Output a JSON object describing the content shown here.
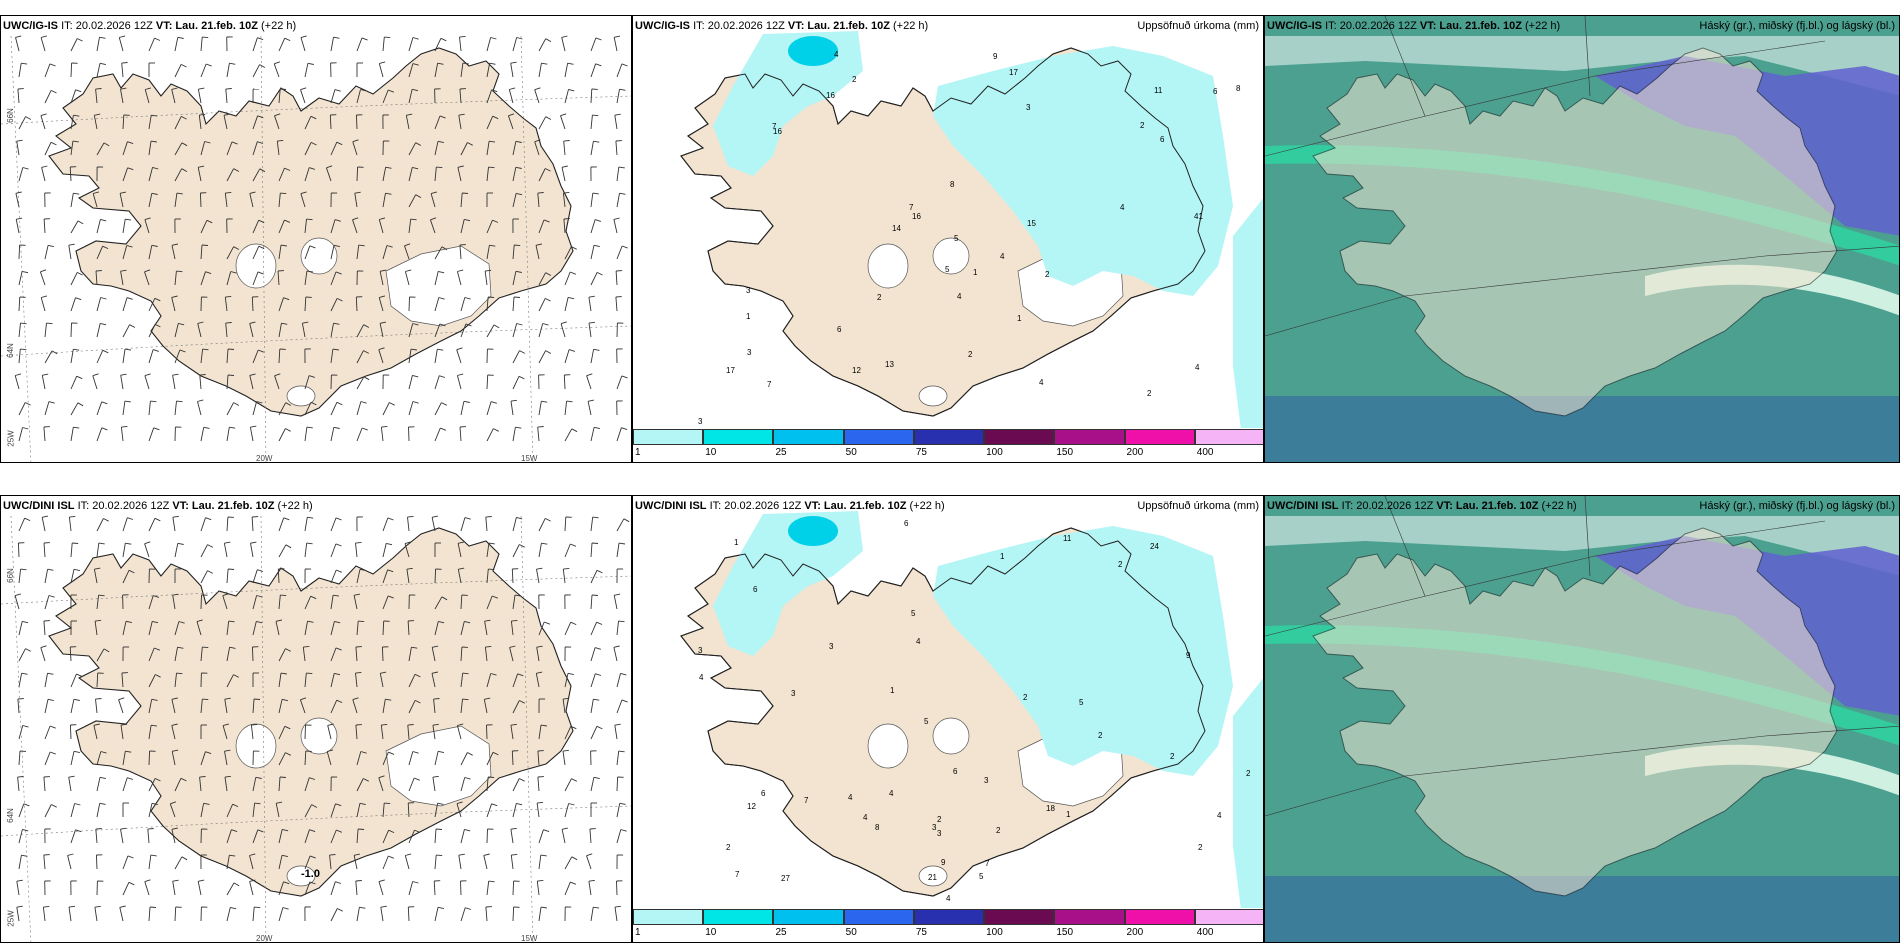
{
  "rows": [
    {
      "wind": {
        "model": "UWC/IG-IS",
        "it": "IT: 20.02.2026 12Z",
        "vt_label": "VT:",
        "vt": "Lau. 21.feb. 10Z",
        "lead": "(+22 h)"
      },
      "precip": {
        "model": "UWC/IG-IS",
        "it": "IT: 20.02.2026 12Z",
        "vt_label": "VT:",
        "vt": "Lau. 21.feb. 10Z",
        "lead": "(+22 h)",
        "right": "Uppsöfnuð úrkoma (mm)"
      },
      "cloud": {
        "model": "UWC/IG-IS",
        "it": "IT: 20.02.2026 12Z",
        "vt_label": "VT:",
        "vt": "Lau. 21.feb. 10Z",
        "lead": "(+22 h)",
        "right": "Háský (gr.), miðský (fj.bl.) og lágský (bl.)"
      }
    },
    {
      "wind": {
        "model": "UWC/DINI ISL",
        "it": "IT: 20.02.2026 12Z",
        "vt_label": "VT:",
        "vt": "Lau. 21.feb. 10Z",
        "lead": "(+22 h)"
      },
      "precip": {
        "model": "UWC/DINI ISL",
        "it": "IT: 20.02.2026 12Z",
        "vt_label": "VT:",
        "vt": "Lau. 21.feb. 10Z",
        "lead": "(+22 h)",
        "right": "Uppsöfnuð úrkoma (mm)"
      },
      "cloud": {
        "model": "UWC/DINI ISL",
        "it": "IT: 20.02.2026 12Z",
        "vt_label": "VT:",
        "vt": "Lau. 21.feb. 10Z",
        "lead": "(+22 h)",
        "right": "Háský (gr.), miðský (fj.bl.) og lágský (bl.)"
      }
    }
  ],
  "axis_labels": {
    "lat66": "66N",
    "lat64": "64N",
    "lon25": "25W",
    "lon20": "20W",
    "lon15": "15W"
  },
  "wind_annotation_bottom": "-1.0",
  "legend": {
    "labels": [
      "1",
      "10",
      "25",
      "50",
      "75",
      "100",
      "150",
      "200",
      "400"
    ],
    "colors": [
      "#b4f5f5",
      "#00e6e6",
      "#00c0f0",
      "#2a66ee",
      "#2830b0",
      "#6a0a50",
      "#a8108a",
      "#ee10a8",
      "#f5b4f5"
    ]
  },
  "precip_values_top": [
    "16",
    "41",
    "16",
    "2",
    "1",
    "16",
    "15",
    "12",
    "2",
    "6",
    "2",
    "2",
    "7",
    "8",
    "13",
    "17",
    "7",
    "6",
    "9",
    "4",
    "3",
    "7",
    "4",
    "8",
    "5",
    "4",
    "6",
    "17",
    "14",
    "11",
    "4",
    "4",
    "2",
    "4",
    "1",
    "3",
    "1",
    "3",
    "5",
    "2",
    "3"
  ],
  "precip_values_bottom": [
    "1",
    "2",
    "2",
    "2",
    "1",
    "1",
    "3",
    "6",
    "24",
    "27",
    "7",
    "6",
    "18",
    "2",
    "4",
    "2",
    "4",
    "11",
    "9",
    "2",
    "2",
    "8",
    "6",
    "4",
    "3",
    "9",
    "21",
    "3",
    "7",
    "2",
    "4",
    "2",
    "3",
    "4",
    "4",
    "12",
    "7",
    "5",
    "4",
    "6",
    "3",
    "5",
    "5",
    "3",
    "5",
    "1"
  ],
  "colors": {
    "land": "#f2e4d0",
    "ocean": "#ffffff",
    "precip_light": "#b4f5f5",
    "cloud_low": "#4ca090",
    "cloud_mid": "#6060d0",
    "cloud_high": "#30d0a0"
  }
}
